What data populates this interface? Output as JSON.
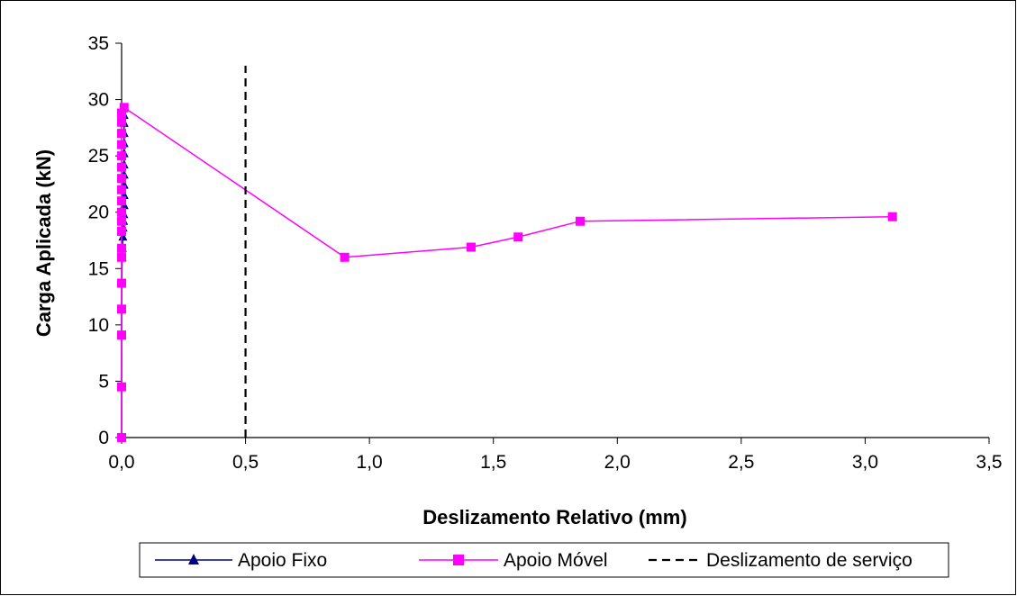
{
  "colors": {
    "apoio_fixo": "#000080",
    "apoio_movel": "#ff00ff",
    "servico": "#000000",
    "frame": "#000000"
  },
  "chart_data": {
    "type": "scatter",
    "title": "",
    "xlabel": "Deslizamento Relativo (mm)",
    "ylabel": "Carga Aplicada (kN)",
    "xlim": [
      0,
      3.5
    ],
    "ylim": [
      0,
      35
    ],
    "x_ticks": [
      "0,0",
      "0,5",
      "1,0",
      "1,5",
      "2,0",
      "2,5",
      "3,0",
      "3,5"
    ],
    "y_ticks": [
      "0",
      "5",
      "10",
      "15",
      "20",
      "25",
      "30",
      "35"
    ],
    "grid": false,
    "legend_position": "bottom",
    "series": [
      {
        "name": "Apoio Fixo",
        "marker": "triangle",
        "color": "#000080",
        "x": [
          0.0,
          0.0,
          0.0,
          0.0,
          0.001,
          0.002,
          0.003,
          0.005,
          0.006,
          0.008,
          0.009,
          0.01,
          0.01,
          0.01,
          0.01,
          0.01,
          0.01,
          0.01,
          0.01,
          0.01,
          0.01,
          0.01
        ],
        "y": [
          0.0,
          4.5,
          9.1,
          11.4,
          13.7,
          16.0,
          16.8,
          17.8,
          18.6,
          19.2,
          19.8,
          20.6,
          21.5,
          22.4,
          23.3,
          24.2,
          25.2,
          26.1,
          27.0,
          27.9,
          28.6,
          29.2
        ]
      },
      {
        "name": "Apoio Móvel",
        "marker": "square",
        "color": "#ff00ff",
        "x": [
          0.0,
          0.0,
          0.0,
          0.0,
          0.0,
          0.0,
          0.0,
          0.0,
          0.0,
          0.0,
          0.0,
          0.0,
          0.0,
          0.0,
          0.0,
          0.0,
          0.0,
          0.0,
          0.0,
          0.01,
          0.9,
          1.41,
          1.6,
          1.85,
          3.11
        ],
        "y": [
          0.0,
          4.5,
          9.1,
          11.4,
          13.7,
          16.0,
          16.8,
          18.3,
          19.2,
          20.0,
          21.0,
          22.0,
          23.0,
          24.0,
          25.0,
          26.0,
          27.0,
          28.0,
          28.8,
          29.3,
          16.0,
          16.9,
          17.8,
          19.2,
          19.6
        ]
      },
      {
        "name": "Deslizamento de serviço",
        "marker": "none",
        "line": "dashed",
        "color": "#000000",
        "x": [
          0.5,
          0.5
        ],
        "y": [
          0.0,
          33.0
        ]
      }
    ]
  }
}
